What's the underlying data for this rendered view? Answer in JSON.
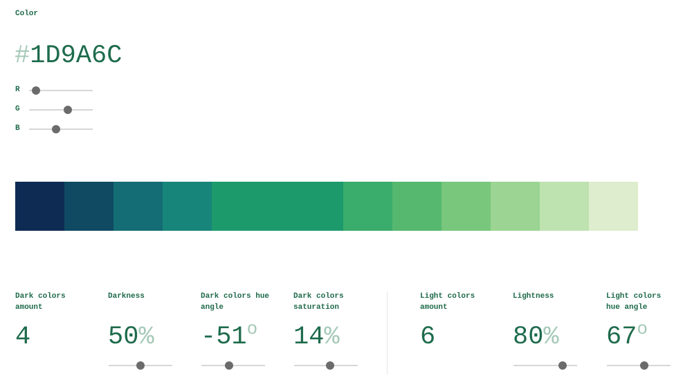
{
  "color_label": "Color",
  "hex": {
    "hash": "#",
    "value": "1D9A6C"
  },
  "rgb": [
    {
      "label": "R",
      "value": 29
    },
    {
      "label": "G",
      "value": 154
    },
    {
      "label": "B",
      "value": 108
    }
  ],
  "swatches": [
    {
      "color": "#0e2c53"
    },
    {
      "color": "#0f4a62"
    },
    {
      "color": "#146c74"
    },
    {
      "color": "#18857a"
    },
    {
      "color": "#1d9a6c",
      "base": true
    },
    {
      "color": "#3aac6b"
    },
    {
      "color": "#56b86f"
    },
    {
      "color": "#78c77d"
    },
    {
      "color": "#9bd493"
    },
    {
      "color": "#bfe2b1"
    },
    {
      "color": "#ddedcd"
    }
  ],
  "dark_controls": [
    {
      "label": "Dark colors amount",
      "value": "4",
      "unit": "",
      "slider": null
    },
    {
      "label": "Darkness",
      "value": "50",
      "unit": "%",
      "slider": 0.5
    },
    {
      "label": "Dark colors hue angle",
      "value": "-51",
      "unit": "o",
      "slider": 0.43
    },
    {
      "label": "Dark colors saturation",
      "value": "14",
      "unit": "%",
      "slider": 0.57
    }
  ],
  "light_controls": [
    {
      "label": "Light colors amount",
      "value": "6",
      "unit": "",
      "slider": null
    },
    {
      "label": "Lightness",
      "value": "80",
      "unit": "%",
      "slider": 0.77
    },
    {
      "label": "Light colors hue angle",
      "value": "67",
      "unit": "o",
      "slider": 0.59
    }
  ]
}
